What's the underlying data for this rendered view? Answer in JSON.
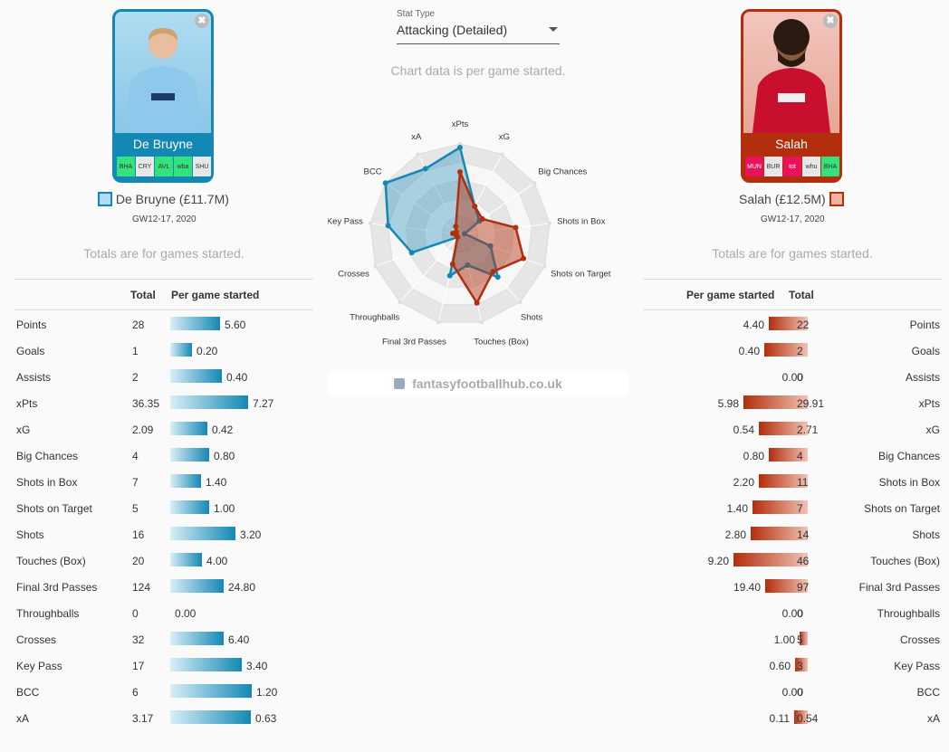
{
  "header": {
    "stat_type_label": "Stat Type",
    "stat_type_value": "Attacking (Detailed)",
    "chart_note": "Chart data is per game started."
  },
  "players": {
    "left": {
      "name": "De Bruyne",
      "legend": "De Bruyne (£11.7M)",
      "gw": "GW12-17, 2020",
      "color": "#1488b4",
      "fixtures": [
        {
          "label": "BHA",
          "color": "#33e27a"
        },
        {
          "label": "CRY",
          "color": "#e7e7e7"
        },
        {
          "label": "AVL",
          "color": "#33e27a"
        },
        {
          "label": "wba",
          "color": "#33e27a"
        },
        {
          "label": "SHU",
          "color": "#e7e7e7"
        }
      ]
    },
    "right": {
      "name": "Salah",
      "legend": "Salah (£12.5M)",
      "gw": "GW12-17, 2020",
      "color": "#b32e0c",
      "fixtures": [
        {
          "label": "MUN",
          "color": "#e8115a"
        },
        {
          "label": "BUR",
          "color": "#e7e7e7"
        },
        {
          "label": "tot",
          "color": "#e8115a"
        },
        {
          "label": "whu",
          "color": "#e7e7e7"
        },
        {
          "label": "BHA",
          "color": "#33e27a"
        }
      ]
    }
  },
  "totals_note": "Totals are for games started.",
  "table": {
    "headers": {
      "total": "Total",
      "per_game": "Per game started"
    },
    "left_rows": [
      {
        "stat": "Points",
        "total": "28",
        "per_game": "5.60",
        "fill": 0.61
      },
      {
        "stat": "Goals",
        "total": "1",
        "per_game": "0.20",
        "fill": 0.27
      },
      {
        "stat": "Assists",
        "total": "2",
        "per_game": "0.40",
        "fill": 0.63
      },
      {
        "stat": "xPts",
        "total": "36.35",
        "per_game": "7.27",
        "fill": 0.96
      },
      {
        "stat": "xG",
        "total": "2.09",
        "per_game": "0.42",
        "fill": 0.46
      },
      {
        "stat": "Big Chances",
        "total": "4",
        "per_game": "0.80",
        "fill": 0.48
      },
      {
        "stat": "Shots in Box",
        "total": "7",
        "per_game": "1.40",
        "fill": 0.38
      },
      {
        "stat": "Shots on Target",
        "total": "5",
        "per_game": "1.00",
        "fill": 0.48
      },
      {
        "stat": "Shots",
        "total": "16",
        "per_game": "3.20",
        "fill": 0.8
      },
      {
        "stat": "Touches (Box)",
        "total": "20",
        "per_game": "4.00",
        "fill": 0.39
      },
      {
        "stat": "Final 3rd Passes",
        "total": "124",
        "per_game": "24.80",
        "fill": 0.66
      },
      {
        "stat": "Throughballs",
        "total": "0",
        "per_game": "0.00",
        "fill": 0
      },
      {
        "stat": "Crosses",
        "total": "32",
        "per_game": "6.40",
        "fill": 0.66
      },
      {
        "stat": "Key Pass",
        "total": "17",
        "per_game": "3.40",
        "fill": 0.88
      },
      {
        "stat": "BCC",
        "total": "6",
        "per_game": "1.20",
        "fill": 1.0
      },
      {
        "stat": "xA",
        "total": "3.17",
        "per_game": "0.63",
        "fill": 0.99
      }
    ],
    "right_rows": [
      {
        "stat": "Points",
        "total": "22",
        "per_game": "4.40",
        "fill": 0.48
      },
      {
        "stat": "Goals",
        "total": "2",
        "per_game": "0.40",
        "fill": 0.53
      },
      {
        "stat": "Assists",
        "total": "0",
        "per_game": "0.00",
        "fill": 0
      },
      {
        "stat": "xPts",
        "total": "29.91",
        "per_game": "5.98",
        "fill": 0.79
      },
      {
        "stat": "xG",
        "total": "2.71",
        "per_game": "0.54",
        "fill": 0.6
      },
      {
        "stat": "Big Chances",
        "total": "4",
        "per_game": "0.80",
        "fill": 0.48
      },
      {
        "stat": "Shots in Box",
        "total": "11",
        "per_game": "2.20",
        "fill": 0.6
      },
      {
        "stat": "Shots on Target",
        "total": "7",
        "per_game": "1.40",
        "fill": 0.68
      },
      {
        "stat": "Shots",
        "total": "14",
        "per_game": "2.80",
        "fill": 0.7
      },
      {
        "stat": "Touches (Box)",
        "total": "46",
        "per_game": "9.20",
        "fill": 0.91
      },
      {
        "stat": "Final 3rd Passes",
        "total": "97",
        "per_game": "19.40",
        "fill": 0.52
      },
      {
        "stat": "Throughballs",
        "total": "0",
        "per_game": "0.00",
        "fill": 0
      },
      {
        "stat": "Crosses",
        "total": "5",
        "per_game": "1.00",
        "fill": 0.1
      },
      {
        "stat": "Key Pass",
        "total": "3",
        "per_game": "0.60",
        "fill": 0.15
      },
      {
        "stat": "BCC",
        "total": "0",
        "per_game": "0.00",
        "fill": 0
      },
      {
        "stat": "xA",
        "total": "0.54",
        "per_game": "0.11",
        "fill": 0.17
      }
    ]
  },
  "chart_data": {
    "type": "radar",
    "axes": [
      "xPts",
      "xG",
      "Big Chances",
      "Shots in Box",
      "Shots on Target",
      "Shots",
      "Touches (Box)",
      "Final 3rd Passes",
      "Throughballs",
      "Crosses",
      "Key Pass",
      "BCC",
      "xA"
    ],
    "series": [
      {
        "name": "De Bruyne (£11.7M)",
        "color": "#1488b4",
        "values": [
          0.96,
          0.35,
          0.26,
          0.05,
          0.36,
          0.63,
          0.35,
          0.47,
          0.04,
          0.57,
          0.8,
          1.0,
          0.82
        ]
      },
      {
        "name": "Salah (£12.5M)",
        "color": "#b32e0c",
        "values": [
          0.69,
          0.35,
          0.3,
          0.62,
          0.75,
          0.55,
          0.78,
          0.34,
          0.04,
          0.04,
          0.08,
          0.05,
          0.1
        ]
      }
    ],
    "rlim": [
      0,
      1
    ],
    "rings": 5
  },
  "watermark": "fantasyfootballhub.co.uk"
}
